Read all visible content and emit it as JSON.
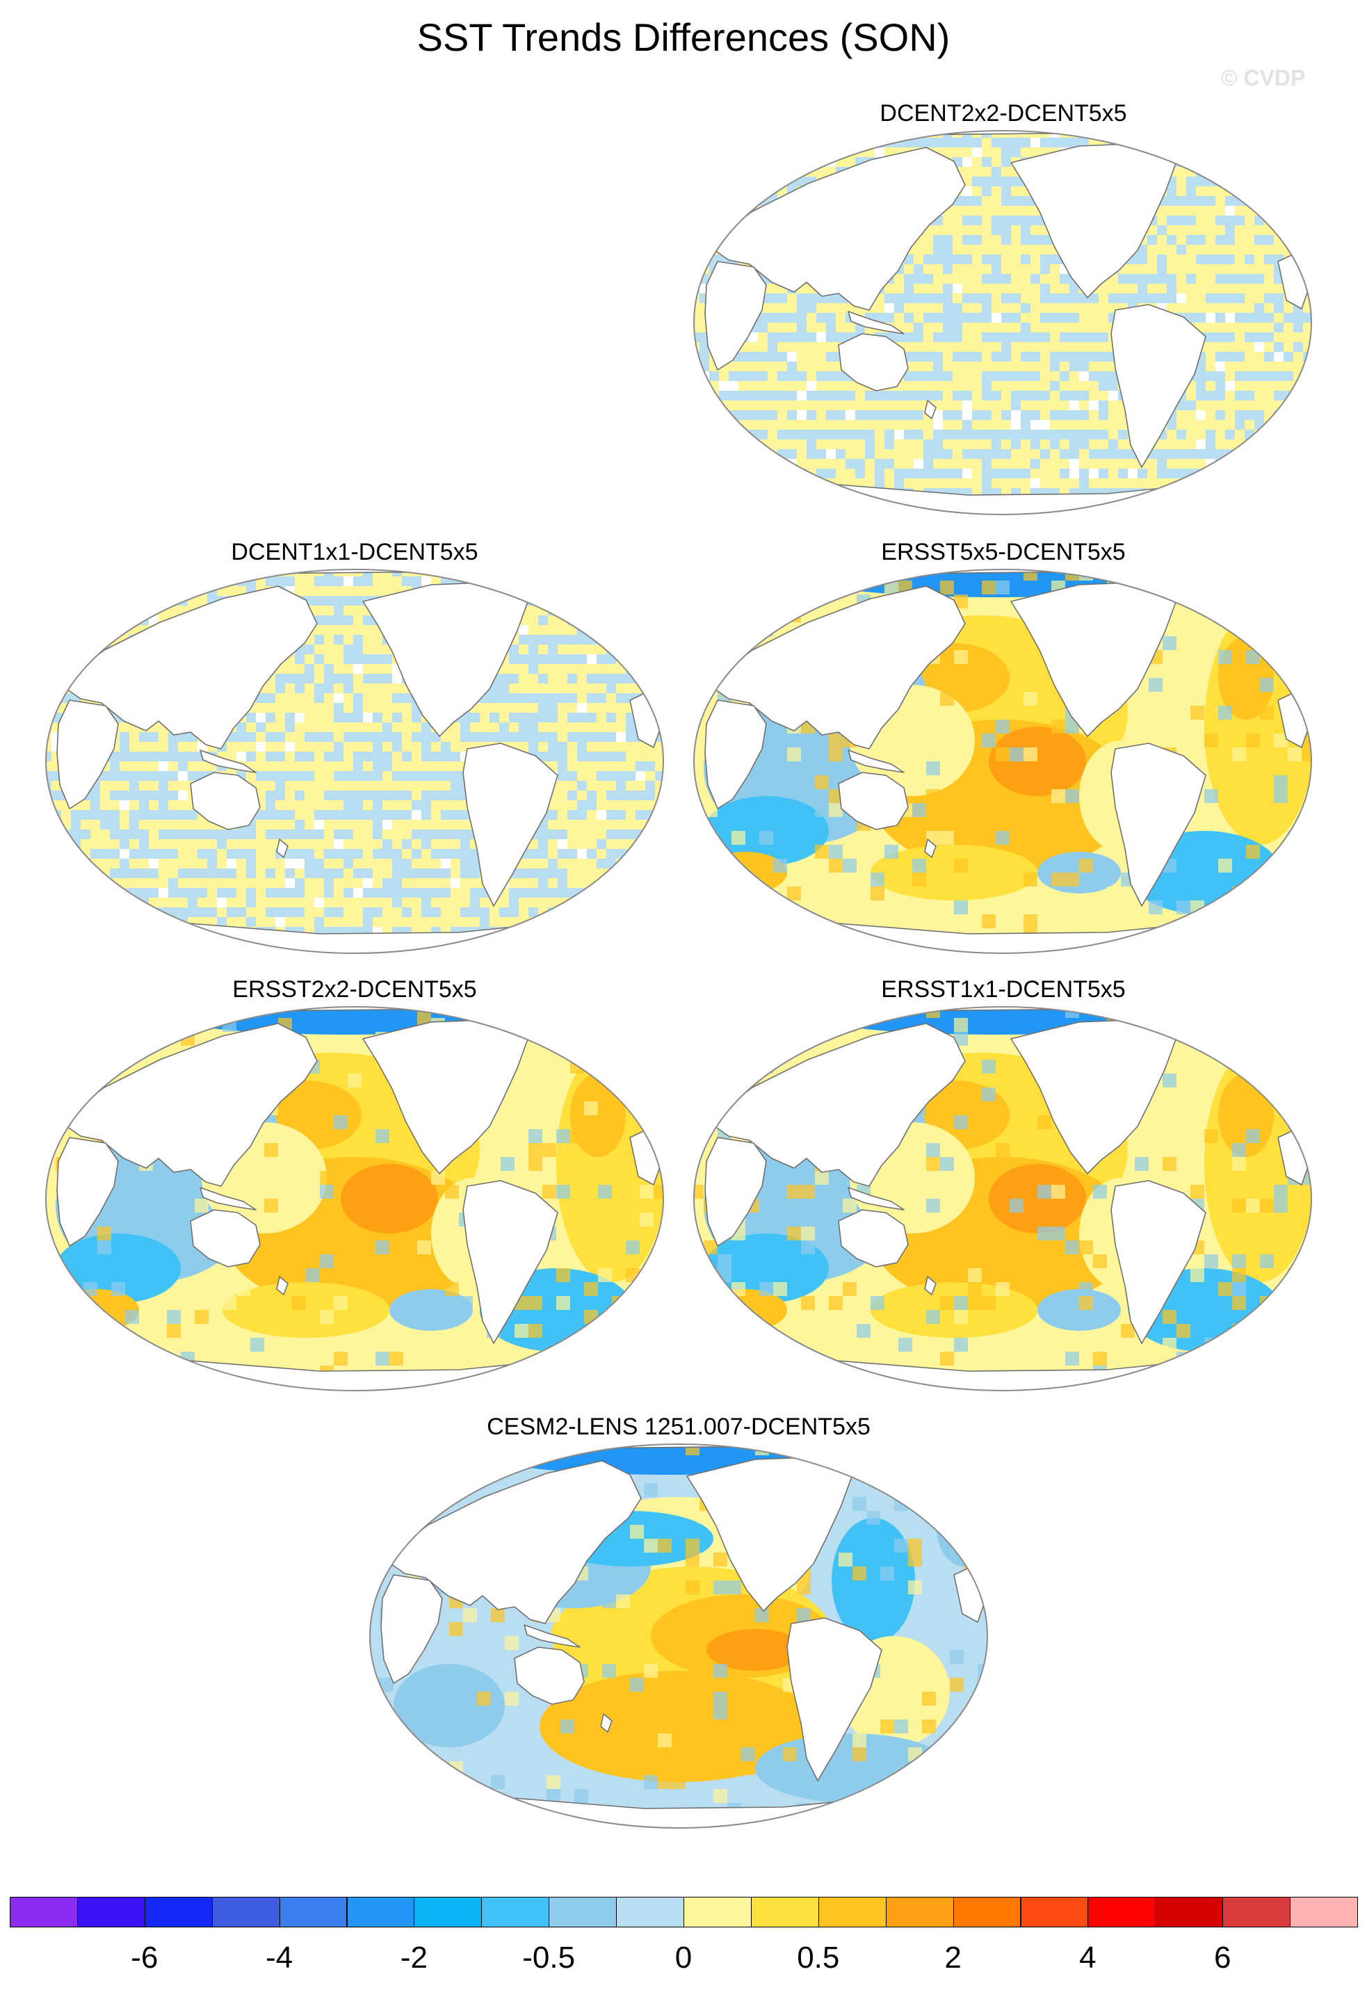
{
  "figure": {
    "title": "SST Trends Differences (SON)",
    "copyright": "© CVDP"
  },
  "panels": [
    {
      "title": "DCENT2x2-DCENT5x5",
      "pattern": "grid"
    },
    {
      "title": "DCENT1x1-DCENT5x5",
      "pattern": "grid"
    },
    {
      "title": "ERSST5x5-DCENT5x5",
      "pattern": "ersst"
    },
    {
      "title": "ERSST2x2-DCENT5x5",
      "pattern": "ersst"
    },
    {
      "title": "ERSST1x1-DCENT5x5",
      "pattern": "ersst"
    },
    {
      "title": "CESM2-LENS 1251.007-DCENT5x5",
      "pattern": "cesm"
    }
  ],
  "colorbar": {
    "colors": [
      "#8a2bf0",
      "#3b12f5",
      "#1429f5",
      "#3d5ce0",
      "#3a7ff0",
      "#2196f5",
      "#0ab4f5",
      "#40c2f7",
      "#8fcceb",
      "#b9def2",
      "#fff59a",
      "#ffe03c",
      "#ffc41f",
      "#ffa012",
      "#ff7800",
      "#ff4a10",
      "#ff0000",
      "#d60000",
      "#d83c3c",
      "#ffb2b2"
    ],
    "tick_labels": [
      "-6",
      "-4",
      "-2",
      "-0.5",
      "0",
      "0.5",
      "2",
      "4",
      "6"
    ],
    "tick_boundaries": [
      2,
      4,
      6,
      8,
      10,
      12,
      14,
      16,
      18
    ]
  }
}
